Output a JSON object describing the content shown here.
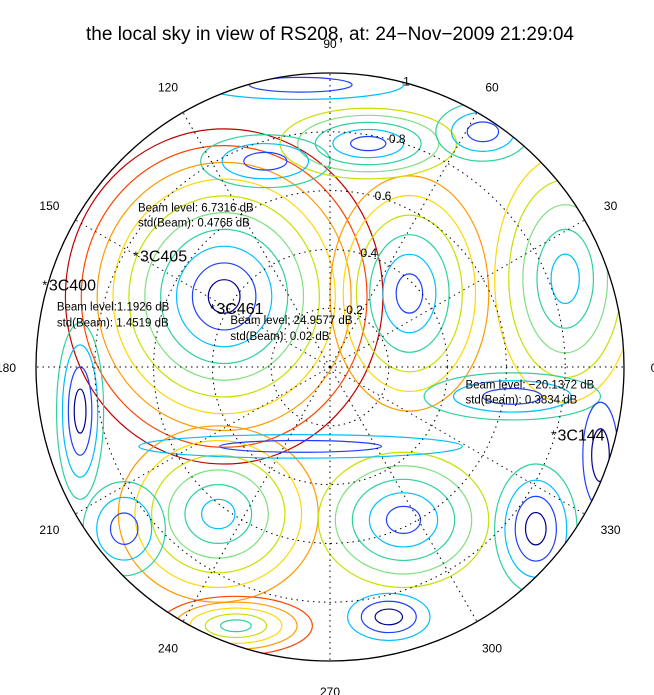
{
  "chart_data": {
    "type": "polar-contour",
    "title": "the local sky in view of RS208, at: 24−Nov−2009 21:29:04",
    "angle_ticks": [
      "0",
      "30",
      "60",
      "90",
      "120",
      "150",
      "180",
      "210",
      "240",
      "270",
      "300",
      "330"
    ],
    "angle_values": [
      0,
      30,
      60,
      90,
      120,
      150,
      180,
      210,
      240,
      270,
      300,
      330
    ],
    "radial_ticks": [
      "0.2",
      "0.4",
      "0.6",
      "0.8",
      "1"
    ],
    "radial_values": [
      0.2,
      0.4,
      0.6,
      0.8,
      1.0
    ],
    "rlim": [
      0,
      1
    ],
    "grid": true,
    "contour_colors": [
      "#00008f",
      "#1f3fff",
      "#00bfff",
      "#2fd0a0",
      "#7fe07f",
      "#c8e000",
      "#ffd700",
      "#ff9a00",
      "#ff4500",
      "#c00000"
    ],
    "sources": [
      {
        "name": "3C405",
        "x": -0.66,
        "y": 0.38,
        "beam_level": "Beam level: 6.7316 dB",
        "beam_std": "std(Beam): 0.4765 dB"
      },
      {
        "name": "3C400",
        "x": -0.97,
        "y": 0.28,
        "beam_level": "Beam level:1.1926 dB",
        "beam_std": "std(Beam): 1.4519 dB"
      },
      {
        "name": "3C461",
        "x": -0.4,
        "y": 0.2,
        "beam_level": "Beam level: 24.9577 dB",
        "beam_std": "std(Beam): 0.02 dB"
      },
      {
        "name": "3C144",
        "x": 0.76,
        "y": -0.23,
        "beam_level": "Beam level: −20.1372 dB",
        "beam_std": "std(Beam): 0.3834 dB"
      }
    ]
  }
}
